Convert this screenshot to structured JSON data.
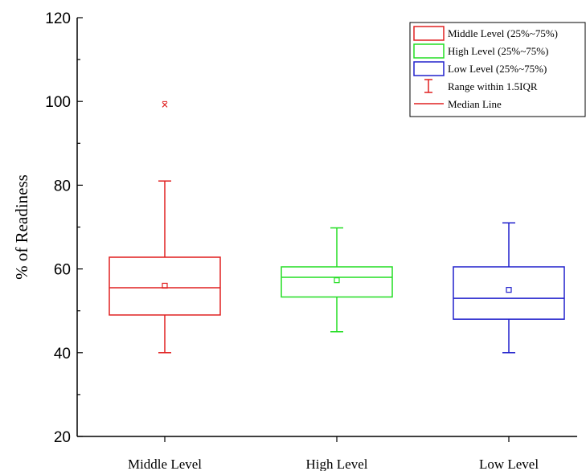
{
  "chart_data": {
    "type": "box",
    "ylabel": "% of Readiness",
    "xlabel": "",
    "ylim": [
      20,
      120
    ],
    "yticks": [
      "20",
      "40",
      "60",
      "80",
      "100",
      "120"
    ],
    "categories": [
      "Middle Level",
      "High Level",
      "Low Level"
    ],
    "series": [
      {
        "name": "Middle Level",
        "color": "#e02020",
        "whisker_low": 40,
        "q1": 49,
        "median": 55.5,
        "mean": 56,
        "q3": 62.8,
        "whisker_high": 81,
        "outliers": [
          99.2
        ]
      },
      {
        "name": "High Level",
        "color": "#22dd22",
        "whisker_low": 45,
        "q1": 53.3,
        "median": 58,
        "mean": 57.3,
        "q3": 60.5,
        "whisker_high": 69.8,
        "outliers": []
      },
      {
        "name": "Low Level",
        "color": "#2020cc",
        "whisker_low": 40,
        "q1": 48,
        "median": 53,
        "mean": 55,
        "q3": 60.5,
        "whisker_high": 71,
        "outliers": []
      }
    ],
    "legend": {
      "position": "top-right",
      "entries": [
        {
          "label": "Middle Level (25%~75%)",
          "kind": "box",
          "color": "#e02020"
        },
        {
          "label": "High Level (25%~75%)",
          "kind": "box",
          "color": "#22dd22"
        },
        {
          "label": "Low Level (25%~75%)",
          "kind": "box",
          "color": "#2020cc"
        },
        {
          "label": "Range within 1.5IQR",
          "kind": "whisker",
          "color": "#e02020"
        },
        {
          "label": "Median Line",
          "kind": "line",
          "color": "#e02020"
        }
      ]
    }
  }
}
